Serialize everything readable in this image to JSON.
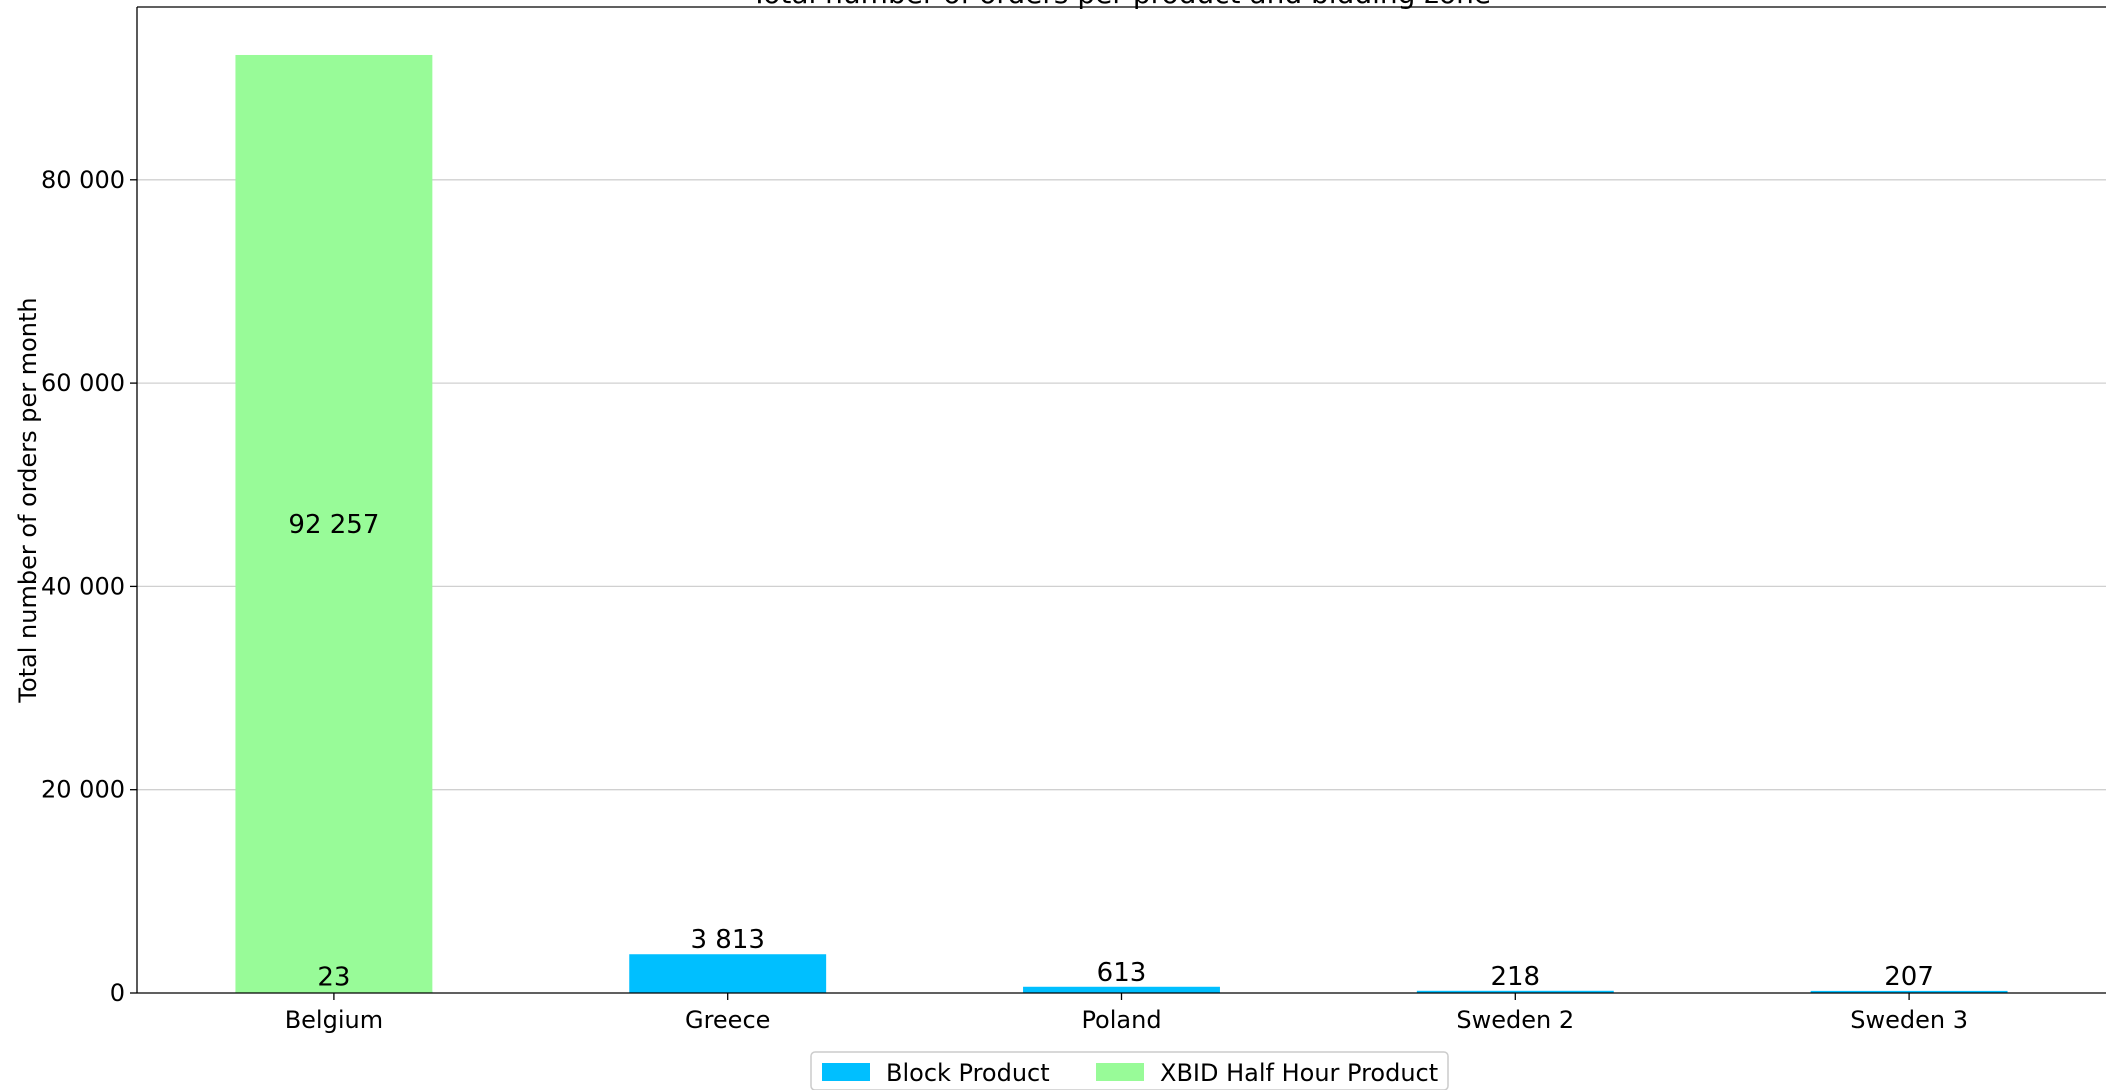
{
  "chart_data": {
    "type": "bar",
    "stacked": true,
    "title": "Total number of orders per product and bidding zone",
    "xlabel": "",
    "ylabel": "Total number of orders per month",
    "categories": [
      "Belgium",
      "Greece",
      "Poland",
      "Sweden 2",
      "Sweden 3"
    ],
    "series": [
      {
        "name": "Block Product",
        "color": "#00bfff",
        "values": [
          23,
          3813,
          613,
          218,
          207
        ],
        "labels": [
          "23",
          "3 813",
          "613",
          "218",
          "207"
        ]
      },
      {
        "name": "XBID Half Hour Product",
        "color": "#98fb98",
        "values": [
          92257,
          0,
          0,
          0,
          0
        ],
        "labels": [
          "92 257",
          "",
          "",
          "",
          ""
        ]
      }
    ],
    "ylim": [
      0,
      97000
    ],
    "yticks": [
      0,
      20000,
      40000,
      60000,
      80000
    ],
    "ytick_labels": [
      "0",
      "20 000",
      "40 000",
      "60 000",
      "80 000"
    ],
    "grid": "horizontal",
    "legend_position": "bottom-center"
  }
}
